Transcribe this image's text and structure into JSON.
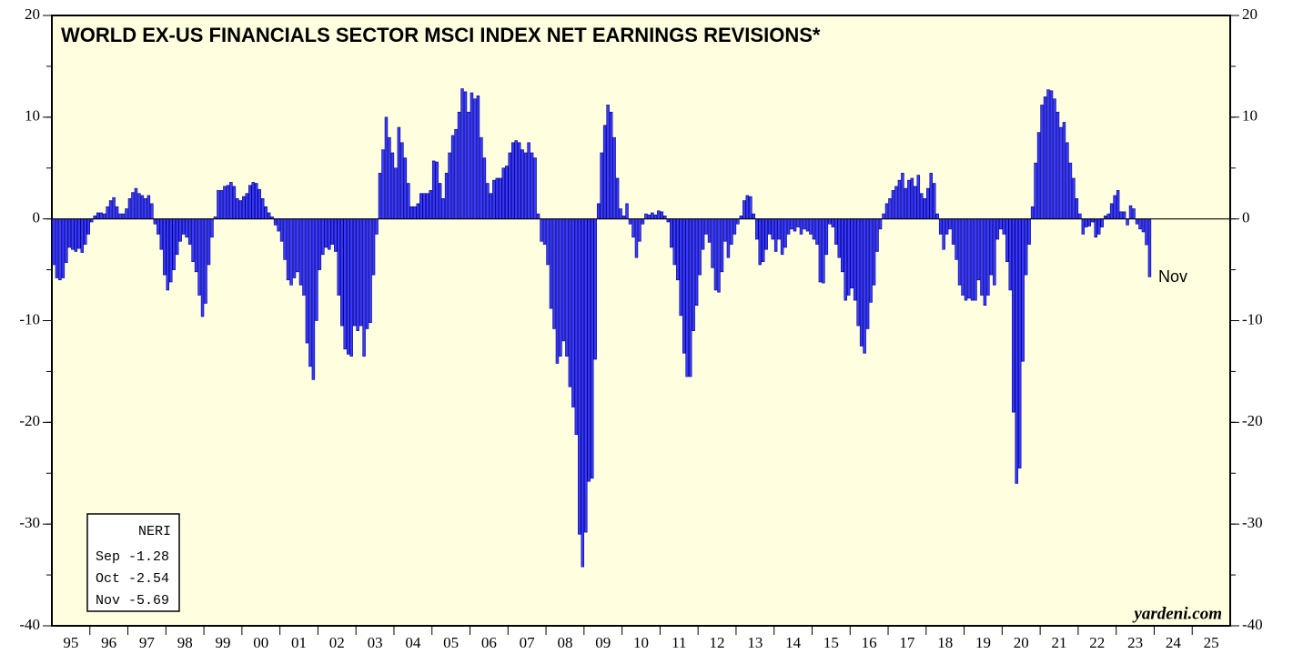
{
  "chart_data": {
    "type": "bar",
    "title": "WORLD EX-US FINANCIALS SECTOR MSCI INDEX NET EARNINGS REVISIONS*",
    "year_labels": [
      "95",
      "96",
      "97",
      "98",
      "99",
      "00",
      "01",
      "02",
      "03",
      "04",
      "05",
      "06",
      "07",
      "08",
      "09",
      "10",
      "11",
      "12",
      "13",
      "14",
      "15",
      "16",
      "17",
      "18",
      "19",
      "20",
      "21",
      "22",
      "23",
      "24",
      "25"
    ],
    "series": [
      {
        "name": "NERI",
        "color": "#3a3aff",
        "values": [
          -4.5,
          -5.8,
          -6.0,
          -5.8,
          -4.3,
          -2.8,
          -3.0,
          -3.2,
          -2.9,
          -3.3,
          -2.5,
          -1.5,
          -0.3,
          0.3,
          0.6,
          0.6,
          0.5,
          1.2,
          1.8,
          2.1,
          1.2,
          0.5,
          0.5,
          1.0,
          2.0,
          2.6,
          3.0,
          2.5,
          2.3,
          2.0,
          2.3,
          1.5,
          -0.5,
          -1.5,
          -3.0,
          -5.5,
          -7.0,
          -6.2,
          -5.0,
          -3.5,
          -2.2,
          -1.5,
          -1.8,
          -2.5,
          -4.2,
          -5.2,
          -7.5,
          -9.6,
          -8.3,
          -4.5,
          -1.8,
          0.2,
          2.8,
          2.8,
          3.2,
          3.3,
          3.6,
          3.2,
          2.0,
          1.8,
          2.2,
          2.5,
          3.3,
          3.6,
          3.5,
          2.9,
          2.0,
          1.2,
          0.6,
          0.2,
          -0.6,
          -1.2,
          -2.2,
          -4.0,
          -6.0,
          -6.5,
          -5.8,
          -5.2,
          -6.5,
          -7.5,
          -12.2,
          -14.5,
          -15.8,
          -10.0,
          -5.0,
          -3.5,
          -2.8,
          -3.0,
          -2.5,
          -3.2,
          -7.5,
          -10.5,
          -12.8,
          -13.3,
          -13.5,
          -10.5,
          -11.0,
          -10.5,
          -13.5,
          -10.8,
          -10.2,
          -5.5,
          -1.5,
          4.5,
          6.8,
          10.0,
          8.0,
          6.5,
          5.0,
          9.0,
          7.5,
          6.0,
          3.5,
          1.2,
          1.2,
          1.5,
          2.5,
          2.5,
          2.5,
          2.8,
          5.7,
          5.6,
          3.5,
          2.0,
          4.5,
          6.5,
          8.2,
          8.8,
          10.5,
          12.8,
          12.5,
          10.5,
          12.4,
          11.8,
          12.1,
          8.0,
          6.0,
          3.5,
          2.5,
          3.8,
          4.0,
          4.0,
          5.0,
          5.2,
          6.5,
          7.5,
          7.7,
          7.5,
          6.8,
          6.5,
          7.5,
          6.5,
          6.0,
          0.5,
          -2.2,
          -2.5,
          -4.5,
          -8.8,
          -10.8,
          -14.2,
          -13.5,
          -12.0,
          -13.5,
          -16.5,
          -18.5,
          -21.2,
          -31.0,
          -34.2,
          -30.8,
          -25.8,
          -25.5,
          -13.8,
          1.5,
          6.5,
          9.2,
          11.2,
          10.5,
          8.0,
          4.0,
          1.0,
          0.3,
          1.5,
          -0.5,
          -1.8,
          -3.8,
          -2.2,
          -0.5,
          0.5,
          0.4,
          0.6,
          0.4,
          0.8,
          0.7,
          0.3,
          -0.3,
          -2.8,
          -4.5,
          -6.0,
          -9.5,
          -13.2,
          -15.5,
          -15.5,
          -11.0,
          -8.5,
          -5.5,
          -3.0,
          -1.5,
          -2.3,
          -4.8,
          -7.0,
          -7.2,
          -5.2,
          -2.2,
          -3.8,
          -2.5,
          -1.5,
          -0.5,
          0.3,
          1.8,
          2.3,
          2.2,
          0.5,
          -2.0,
          -4.5,
          -4.2,
          -3.0,
          -1.5,
          -2.0,
          -3.2,
          -2.0,
          -3.5,
          -2.8,
          -1.5,
          -1.0,
          -1.2,
          -0.8,
          -1.5,
          -1.0,
          -1.2,
          -1.5,
          -2.0,
          -2.5,
          -6.2,
          -6.3,
          -3.5,
          -0.5,
          -0.8,
          -2.5,
          -3.8,
          -5.2,
          -8.0,
          -7.5,
          -6.8,
          -8.0,
          -10.5,
          -12.5,
          -13.2,
          -10.8,
          -8.2,
          -6.5,
          -3.2,
          -1.0,
          0.5,
          1.5,
          2.0,
          2.8,
          3.2,
          3.8,
          4.5,
          3.0,
          3.8,
          4.0,
          3.2,
          4.3,
          2.5,
          2.0,
          3.0,
          4.5,
          3.5,
          0.5,
          -1.5,
          -3.0,
          -1.5,
          -1.0,
          -2.5,
          -4.0,
          -6.5,
          -7.5,
          -8.0,
          -7.8,
          -8.0,
          -8.0,
          -6.0,
          -7.5,
          -8.5,
          -7.5,
          -5.5,
          -6.5,
          -2.0,
          -1.0,
          -1.5,
          -4.2,
          -7.0,
          -19.0,
          -26.0,
          -24.5,
          -14.0,
          -5.5,
          -2.5,
          1.2,
          5.5,
          8.5,
          11.2,
          12.0,
          12.7,
          12.6,
          11.8,
          10.5,
          9.0,
          9.5,
          7.5,
          5.5,
          4.0,
          2.0,
          0.5,
          -1.5,
          -0.8,
          -0.7,
          -0.3,
          -1.8,
          -1.5,
          -0.8,
          0.3,
          0.5,
          1.5,
          2.3,
          2.8,
          0.7,
          0.7,
          -0.6,
          1.3,
          1.0,
          -0.5,
          -1.0,
          -1.28,
          -2.54,
          -5.69
        ]
      }
    ],
    "ylim": [
      -40,
      20
    ],
    "yticks": [
      -40,
      -30,
      -20,
      -10,
      0,
      10,
      20
    ],
    "annotation": "Nov",
    "legend_box": {
      "title": "NERI",
      "rows": [
        [
          "Sep",
          "-1.28"
        ],
        [
          "Oct",
          "-2.54"
        ],
        [
          "Nov",
          "-5.69"
        ]
      ]
    },
    "source": "yardeni.com"
  }
}
